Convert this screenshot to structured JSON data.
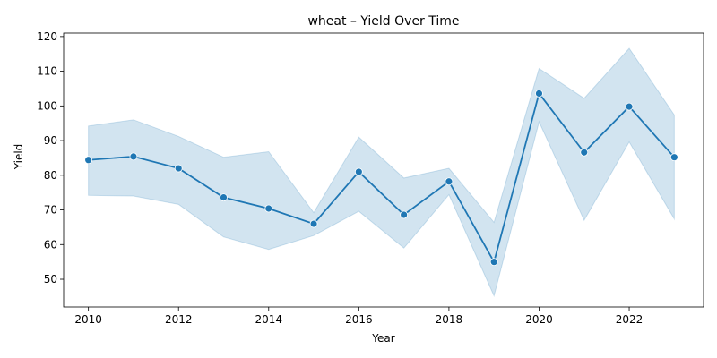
{
  "chart_data": {
    "type": "line",
    "title": "wheat – Yield Over Time",
    "xlabel": "Year",
    "ylabel": "Yield",
    "xlim": [
      2009.45,
      2023.65
    ],
    "ylim": [
      42,
      121
    ],
    "x_ticks": [
      2010,
      2012,
      2014,
      2016,
      2018,
      2020,
      2022
    ],
    "y_ticks": [
      50,
      60,
      70,
      80,
      90,
      100,
      110,
      120
    ],
    "grid": false,
    "colors": {
      "line": "#1f77b4",
      "band": "#1f77b4"
    },
    "series": [
      {
        "x": [
          2010,
          2011,
          2012,
          2013,
          2014,
          2015,
          2016,
          2017,
          2018,
          2019,
          2020,
          2021,
          2022,
          2023
        ],
        "values": [
          84.4,
          85.4,
          82.0,
          73.6,
          70.4,
          66.0,
          81.0,
          68.6,
          78.2,
          55.0,
          103.6,
          86.6,
          99.8,
          85.2
        ],
        "ci_upper": [
          94.2,
          96.0,
          91.2,
          85.2,
          86.8,
          69.2,
          91.0,
          79.2,
          82.0,
          66.4,
          110.8,
          102.2,
          116.6,
          97.4
        ],
        "ci_lower": [
          74.2,
          74.0,
          71.6,
          62.2,
          58.6,
          62.6,
          69.6,
          59.0,
          74.4,
          45.2,
          95.4,
          67.0,
          89.6,
          67.4
        ]
      }
    ]
  }
}
